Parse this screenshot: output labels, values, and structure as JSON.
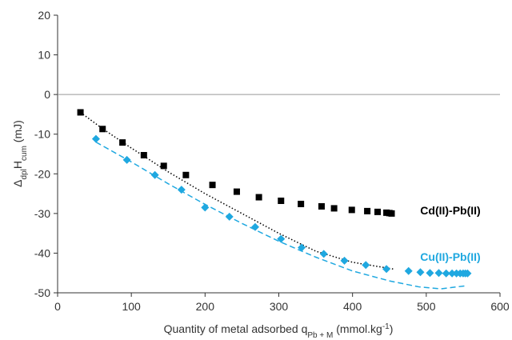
{
  "chart_data": {
    "type": "scatter",
    "xlabel": [
      {
        "text": "Quantity of metal adsorbed q"
      },
      {
        "text": "Pb + M",
        "shift": "sub"
      },
      {
        "text": " (mmol.kg"
      },
      {
        "text": "-1",
        "shift": "super"
      },
      {
        "text": ")"
      }
    ],
    "ylabel": [
      {
        "text": "Δ"
      },
      {
        "text": "dpl",
        "shift": "sub"
      },
      {
        "text": "H"
      },
      {
        "text": "cum",
        "shift": "sub"
      },
      {
        "text": " (mJ)"
      }
    ],
    "xlim": [
      0,
      600
    ],
    "xticks": [
      0,
      100,
      200,
      300,
      400,
      500,
      600
    ],
    "ylim": [
      -50,
      20
    ],
    "yticks": [
      -50,
      -40,
      -30,
      -20,
      -10,
      0,
      10,
      20
    ],
    "zero_line": true,
    "series": [
      {
        "name": "Cd(II)-Pb(II)",
        "color": "#000000",
        "marker": "square",
        "x": [
          31,
          61,
          88,
          117,
          144,
          174,
          210,
          243,
          273,
          303,
          330,
          358,
          375,
          399,
          420,
          434,
          446,
          450,
          453
        ],
        "values": [
          -4.5,
          -8.7,
          -12.1,
          -15.3,
          -18,
          -20.3,
          -22.8,
          -24.5,
          -25.9,
          -26.8,
          -27.6,
          -28.2,
          -28.7,
          -29.1,
          -29.4,
          -29.6,
          -29.8,
          -29.9,
          -30
        ],
        "fit": {
          "style": "dotted",
          "x": [
            31,
            60,
            100,
            150,
            200,
            250,
            300,
            350,
            400,
            455
          ],
          "values": [
            -4.5,
            -8.5,
            -13.5,
            -19.5,
            -25,
            -30,
            -35,
            -39.5,
            -42.3,
            -44
          ]
        }
      },
      {
        "name": "Cu(II)-Pb(II)",
        "color": "#1fa8e0",
        "marker": "diamond",
        "x": [
          52,
          94,
          132,
          168,
          200,
          233,
          268,
          303,
          331,
          361,
          389,
          418,
          446,
          476,
          492,
          505,
          517,
          527,
          535,
          541,
          546,
          550,
          553,
          556
        ],
        "values": [
          -11.2,
          -16.5,
          -20.3,
          -24,
          -28.5,
          -30.8,
          -33.4,
          -36.4,
          -38.6,
          -40.2,
          -41.9,
          -43,
          -44,
          -44.5,
          -44.8,
          -45,
          -45,
          -45.1,
          -45.1,
          -45.1,
          -45.1,
          -45.1,
          -45.1,
          -45.1
        ],
        "fit": {
          "style": "dashed",
          "x": [
            52,
            100,
            150,
            200,
            250,
            300,
            350,
            400,
            450,
            490,
            520,
            555
          ],
          "values": [
            -12,
            -17,
            -22.5,
            -27.7,
            -32.5,
            -37,
            -41,
            -44.5,
            -47,
            -48.5,
            -49,
            -48.2
          ]
        }
      }
    ]
  }
}
